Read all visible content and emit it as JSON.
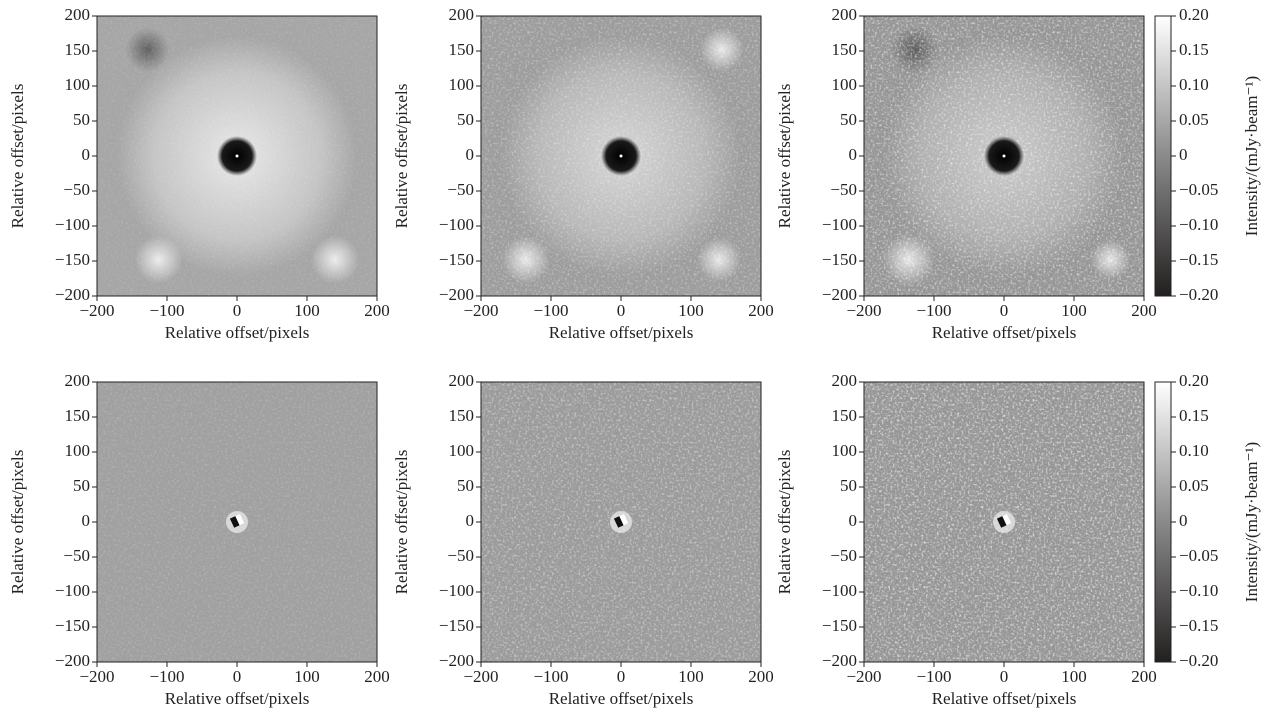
{
  "chart_data": [
    {
      "type": "image",
      "xlabel": "Relative offset/pixels",
      "ylabel": "Relative offset/pixels",
      "xlim": [
        -200,
        200
      ],
      "ylim": [
        -200,
        200
      ],
      "xticks": [
        {
          "value": -200,
          "label": "−200"
        },
        {
          "value": -100,
          "label": "−100"
        },
        0,
        100,
        200
      ],
      "yticks": [
        {
          "value": -200,
          "label": "−200"
        },
        {
          "value": -150,
          "label": "−150"
        },
        {
          "value": -100,
          "label": "−100"
        },
        {
          "value": -50,
          "label": "−50"
        },
        0,
        50,
        100,
        150,
        200
      ]
    },
    {
      "type": "image",
      "xlabel": "Relative offset/pixels",
      "ylabel": "Relative offset/pixels",
      "xlim": [
        -200,
        200
      ],
      "ylim": [
        -200,
        200
      ],
      "xticks": [
        {
          "value": -200,
          "label": "−200"
        },
        {
          "value": -100,
          "label": "−100"
        },
        0,
        100,
        200
      ],
      "yticks": [
        {
          "value": -200,
          "label": "−200"
        },
        {
          "value": -150,
          "label": "−150"
        },
        {
          "value": -100,
          "label": "−100"
        },
        {
          "value": -50,
          "label": "−50"
        },
        0,
        50,
        100,
        150,
        200
      ]
    },
    {
      "type": "image",
      "xlabel": "Relative offset/pixels",
      "ylabel": "Relative offset/pixels",
      "xlim": [
        -200,
        200
      ],
      "ylim": [
        -200,
        200
      ],
      "xticks": [
        {
          "value": -200,
          "label": "−200"
        },
        {
          "value": -100,
          "label": "−100"
        },
        0,
        100,
        200
      ],
      "yticks": [
        {
          "value": -200,
          "label": "−200"
        },
        {
          "value": -150,
          "label": "−150"
        },
        {
          "value": -100,
          "label": "−100"
        },
        {
          "value": -50,
          "label": "−50"
        },
        0,
        50,
        100,
        150,
        200
      ],
      "colorbar": {
        "label": "Intensity/(mJy·beam⁻¹)",
        "lim": [
          -0.2,
          0.2
        ],
        "ticks": [
          {
            "value": 0.2,
            "label": "0.20"
          },
          {
            "value": 0.15,
            "label": "0.15"
          },
          {
            "value": 0.1,
            "label": "0.10"
          },
          {
            "value": 0.05,
            "label": "0.05"
          },
          0,
          {
            "value": -0.05,
            "label": "−0.05"
          },
          {
            "value": -0.1,
            "label": "−0.10"
          },
          {
            "value": -0.15,
            "label": "−0.15"
          },
          {
            "value": -0.2,
            "label": "−0.20"
          }
        ]
      }
    },
    {
      "type": "image",
      "xlabel": "Relative offset/pixels",
      "ylabel": "Relative offset/pixels",
      "xlim": [
        -200,
        200
      ],
      "ylim": [
        -200,
        200
      ],
      "xticks": [
        {
          "value": -200,
          "label": "−200"
        },
        {
          "value": -100,
          "label": "−100"
        },
        0,
        100,
        200
      ],
      "yticks": [
        {
          "value": -200,
          "label": "−200"
        },
        {
          "value": -150,
          "label": "−150"
        },
        {
          "value": -100,
          "label": "−100"
        },
        {
          "value": -50,
          "label": "−50"
        },
        0,
        50,
        100,
        150,
        200
      ]
    },
    {
      "type": "image",
      "xlabel": "Relative offset/pixels",
      "ylabel": "Relative offset/pixels",
      "xlim": [
        -200,
        200
      ],
      "ylim": [
        -200,
        200
      ],
      "xticks": [
        {
          "value": -200,
          "label": "−200"
        },
        {
          "value": -100,
          "label": "−100"
        },
        0,
        100,
        200
      ],
      "yticks": [
        {
          "value": -200,
          "label": "−200"
        },
        {
          "value": -150,
          "label": "−150"
        },
        {
          "value": -100,
          "label": "−100"
        },
        {
          "value": -50,
          "label": "−50"
        },
        0,
        50,
        100,
        150,
        200
      ]
    },
    {
      "type": "image",
      "xlabel": "Relative offset/pixels",
      "ylabel": "Relative offset/pixels",
      "xlim": [
        -200,
        200
      ],
      "ylim": [
        -200,
        200
      ],
      "xticks": [
        {
          "value": -200,
          "label": "−200"
        },
        {
          "value": -100,
          "label": "−100"
        },
        0,
        100,
        200
      ],
      "yticks": [
        {
          "value": -200,
          "label": "−200"
        },
        {
          "value": -150,
          "label": "−150"
        },
        {
          "value": -100,
          "label": "−100"
        },
        {
          "value": -50,
          "label": "−50"
        },
        0,
        50,
        100,
        150,
        200
      ],
      "colorbar": {
        "label": "Intensity/(mJy·beam⁻¹)",
        "lim": [
          -0.2,
          0.2
        ],
        "ticks": [
          {
            "value": 0.2,
            "label": "0.20"
          },
          {
            "value": 0.15,
            "label": "0.15"
          },
          {
            "value": 0.1,
            "label": "0.10"
          },
          {
            "value": 0.05,
            "label": "0.05"
          },
          0,
          {
            "value": -0.05,
            "label": "−0.05"
          },
          {
            "value": -0.1,
            "label": "−0.10"
          },
          {
            "value": -0.15,
            "label": "−0.15"
          },
          {
            "value": -0.2,
            "label": "−0.20"
          }
        ]
      }
    }
  ]
}
